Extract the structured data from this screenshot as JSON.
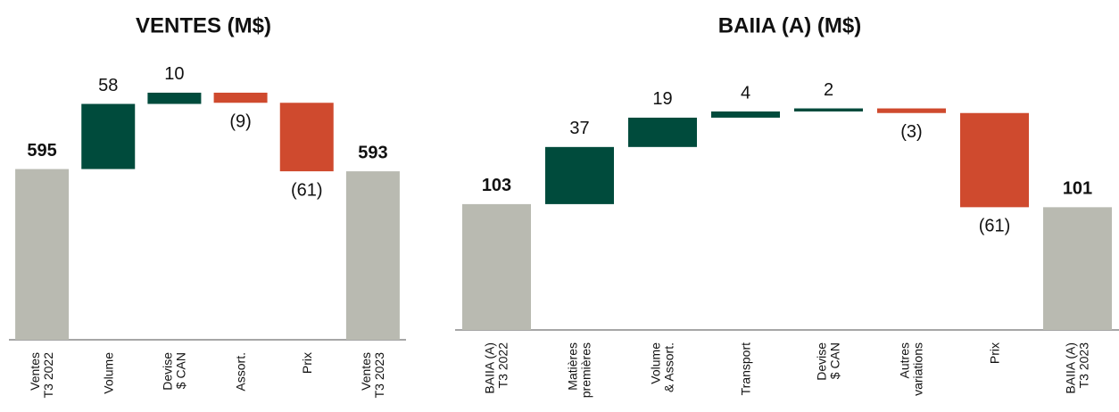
{
  "chart_data": [
    {
      "type": "waterfall",
      "title": "VENTES (M$)",
      "categories": [
        "Ventes\nT3 2022",
        "Volume",
        "Devise\n$ CAN",
        "Assort.",
        "Prix",
        "Ventes\nT3 2023"
      ],
      "values": [
        595,
        58,
        10,
        -9,
        -61,
        593
      ],
      "value_labels": [
        "595",
        "58",
        "10",
        "(9)",
        "(61)",
        "593"
      ],
      "ylim": [
        443,
        682
      ],
      "colors": {
        "total": "#b9bab1",
        "increase": "#004b3c",
        "decrease": "#cf4a2e"
      }
    },
    {
      "type": "waterfall",
      "title": "BAIIA (A) (M$)",
      "categories": [
        "BAIIA (A)\nT3 2022",
        "Matières\npremières",
        "Volume\n& Assort.",
        "Transport",
        "Devise\n$ CAN",
        "Autres\nvariations",
        "Prix",
        "BAIIA (A)\nT3 2023"
      ],
      "values": [
        103,
        37,
        19,
        4,
        2,
        -3,
        -61,
        101
      ],
      "value_labels": [
        "103",
        "37",
        "19",
        "4",
        "2",
        "(3)",
        "(61)",
        "101"
      ],
      "ylim": [
        21.5,
        189
      ],
      "colors": {
        "total": "#b9bab1",
        "increase": "#004b3c",
        "decrease": "#cf4a2e"
      }
    }
  ]
}
